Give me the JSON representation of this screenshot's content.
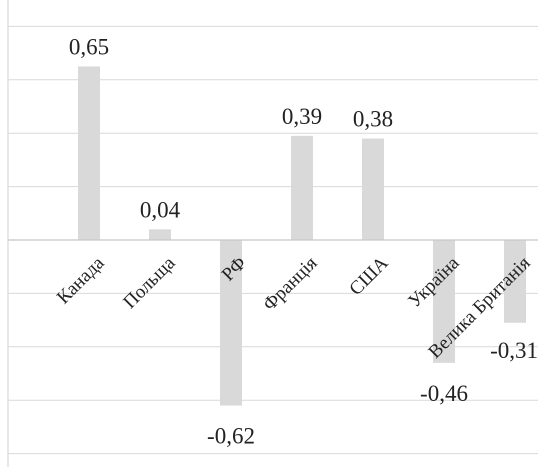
{
  "chart_data": {
    "type": "bar",
    "categories": [
      "Канада",
      "Польща",
      "РФ",
      "Франція",
      "США",
      "Україна",
      "Велика Британія"
    ],
    "values": [
      0.65,
      0.04,
      -0.62,
      0.39,
      0.38,
      -0.46,
      -0.31
    ],
    "data_labels": [
      "0,65",
      "0,04",
      "-0,62",
      "0,39",
      "0,38",
      "-0,46",
      "-0,31"
    ],
    "ylim": [
      -0.8,
      0.8
    ],
    "grid_step": 0.2,
    "grid": true,
    "legend": "none",
    "bar_color": "#d9d9d9",
    "grid_color": "#d9d9d9",
    "axis_color": "#c8c8c8",
    "text_color": "#222222"
  }
}
